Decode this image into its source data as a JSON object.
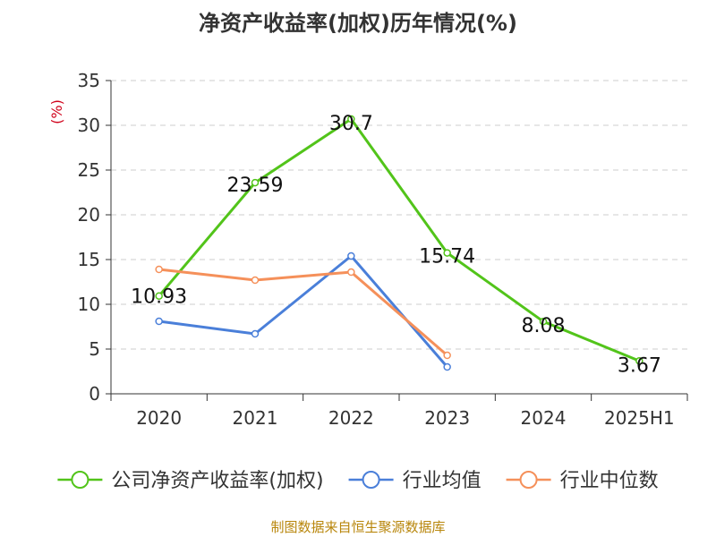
{
  "title": "净资产收益率(加权)历年情况(%)",
  "source": "制图数据来自恒生聚源数据库",
  "colors": {
    "company": "#52c41a",
    "industry_avg": "#4a7fd9",
    "industry_median": "#f5905a",
    "axis": "#333333",
    "grid": "#cccccc",
    "unit": "#d0021b"
  },
  "chart_data": {
    "type": "line",
    "ylabel": "(%)",
    "ylim": [
      0,
      35
    ],
    "yticks": [
      0,
      5,
      10,
      15,
      20,
      25,
      30,
      35
    ],
    "grid": "horizontal dashed",
    "legend_position": "bottom",
    "categories": [
      "2020",
      "2021",
      "2022",
      "2023",
      "2024",
      "2025H1"
    ],
    "series": [
      {
        "name": "公司净资产收益率(加权)",
        "values": [
          10.93,
          23.59,
          30.7,
          15.74,
          8.08,
          3.67
        ],
        "labels": [
          "10.93",
          "23.59",
          "30.7",
          "15.74",
          "8.08",
          "3.67"
        ],
        "color": "#52c41a"
      },
      {
        "name": "行业均值",
        "values": [
          8.1,
          6.7,
          15.4,
          3.0,
          null,
          null
        ],
        "color": "#4a7fd9"
      },
      {
        "name": "行业中位数",
        "values": [
          13.9,
          12.7,
          13.6,
          4.3,
          null,
          null
        ],
        "color": "#f5905a"
      }
    ]
  }
}
